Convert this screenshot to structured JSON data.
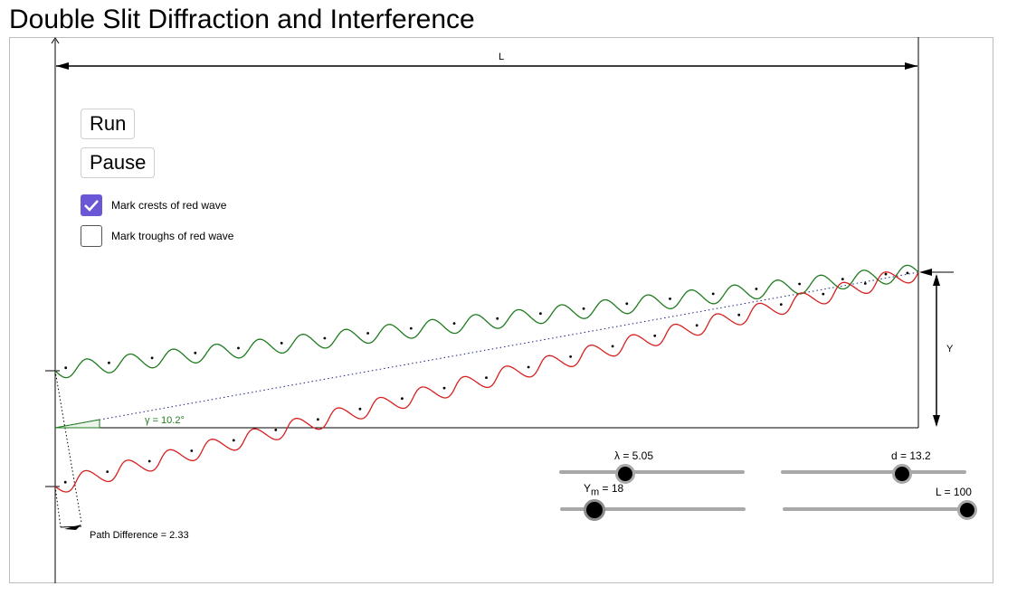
{
  "title": "Double Slit Diffraction and Interference",
  "buttons": {
    "run_label": "Run",
    "pause_label": "Pause"
  },
  "checkboxes": {
    "crests_label": "Mark crests of red wave",
    "crests_checked": true,
    "troughs_label": "Mark troughs of red wave",
    "troughs_checked": false
  },
  "diagram": {
    "L_label": "L",
    "Y_label": "Y",
    "angle_label": "γ = 10.2°",
    "path_diff_label": "Path Difference = 2.33",
    "colors": {
      "green_wave": "#1e7b1e",
      "red_wave": "#d62020",
      "angle": "#1e7b1e"
    }
  },
  "sliders": {
    "lambda": {
      "label": "λ = 5.05",
      "value": 5.05,
      "fraction": 0.34
    },
    "d": {
      "label": "d = 13.2",
      "value": 13.2,
      "fraction": 0.65
    },
    "ym": {
      "prefix": "Y",
      "sub": "m",
      "suffix": " = 18",
      "value": 18,
      "fraction": 0.19
    },
    "L": {
      "label": "L = 100",
      "value": 100,
      "fraction": 1.0
    }
  }
}
